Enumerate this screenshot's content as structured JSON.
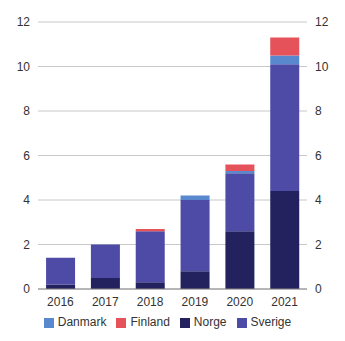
{
  "chart_data": {
    "type": "bar",
    "stacked": true,
    "grid": true,
    "legend": "bottom",
    "categories": [
      "2016",
      "2017",
      "2018",
      "2019",
      "2020",
      "2021"
    ],
    "series": [
      {
        "name": "Norge",
        "color": "#23225e",
        "values": [
          0.2,
          0.5,
          0.3,
          0.8,
          2.6,
          4.4
        ]
      },
      {
        "name": "Sverige",
        "color": "#4d4ba6",
        "values": [
          1.2,
          1.5,
          2.3,
          3.2,
          2.6,
          5.7
        ]
      },
      {
        "name": "Danmark",
        "color": "#5a88cf",
        "values": [
          0,
          0,
          0,
          0.2,
          0.1,
          0.4
        ]
      },
      {
        "name": "Finland",
        "color": "#e5525a",
        "values": [
          0,
          0,
          0.1,
          0,
          0.3,
          0.8
        ]
      }
    ],
    "ylim": [
      0,
      12
    ],
    "yticks": [
      0,
      2,
      4,
      6,
      8,
      10,
      12
    ],
    "y2lim": [
      0,
      12
    ],
    "y2ticks": [
      0,
      2,
      4,
      6,
      8,
      10,
      12
    ]
  }
}
